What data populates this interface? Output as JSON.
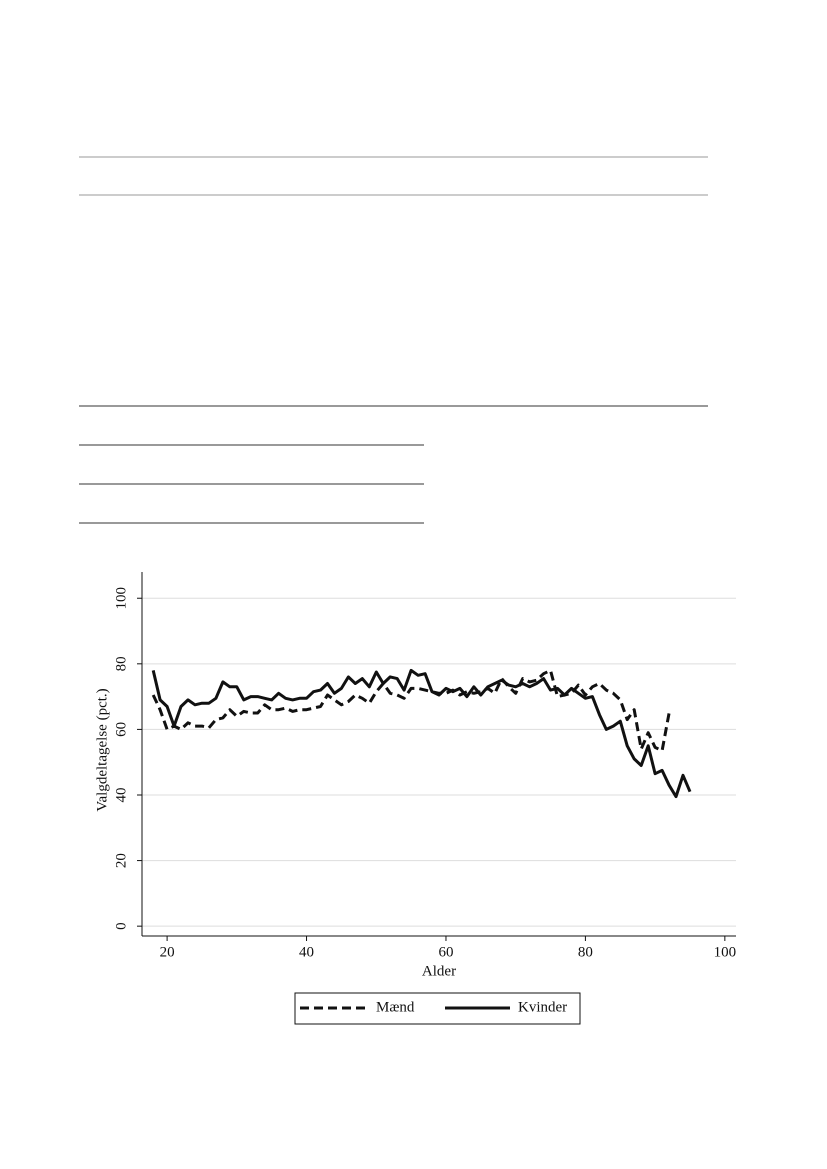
{
  "chart_data": {
    "type": "line",
    "x_label": "Alder",
    "y_label": "Valgdeltagelse (pct.)",
    "x": [
      18,
      19,
      20,
      21,
      22,
      23,
      24,
      25,
      26,
      27,
      28,
      29,
      30,
      31,
      32,
      33,
      34,
      35,
      36,
      37,
      38,
      39,
      40,
      41,
      42,
      43,
      44,
      45,
      46,
      47,
      48,
      49,
      50,
      51,
      52,
      53,
      54,
      55,
      56,
      57,
      58,
      59,
      60,
      61,
      62,
      63,
      64,
      65,
      66,
      67,
      68,
      69,
      70,
      71,
      72,
      73,
      74,
      75,
      76,
      77,
      78,
      79,
      80,
      81,
      82,
      83,
      84,
      85,
      86,
      87,
      88,
      89,
      90,
      91,
      92,
      93,
      94,
      95
    ],
    "series": [
      {
        "name": "Mænd",
        "color": "#111111",
        "dash": true,
        "values": [
          70.5,
          66,
          60,
          61,
          60,
          62,
          61,
          61,
          60.5,
          63,
          63.5,
          66,
          64,
          65.5,
          65,
          65,
          67.5,
          66,
          66,
          66.5,
          65.5,
          66,
          66,
          66.5,
          67,
          70.5,
          69,
          67.5,
          68.5,
          70.5,
          69.5,
          68,
          71.5,
          74,
          71,
          70.5,
          69.5,
          72.5,
          72.5,
          72,
          71.5,
          71,
          71,
          72,
          70.5,
          71.5,
          71,
          71.5,
          72.5,
          71,
          75.5,
          73,
          71,
          75.5,
          74.5,
          75,
          77,
          78,
          70,
          70.5,
          71,
          73.5,
          70.5,
          73,
          74,
          72,
          71,
          69,
          63,
          66,
          54,
          59,
          54.5,
          53.5,
          65,
          null,
          null,
          null
        ]
      },
      {
        "name": "Kvinder",
        "color": "#111111",
        "dash": false,
        "values": [
          78,
          69,
          67,
          61,
          67,
          69,
          67.5,
          68,
          68,
          69.5,
          74.5,
          73,
          73,
          69,
          70,
          70,
          69.5,
          69,
          71,
          69.5,
          69,
          69.5,
          69.5,
          71.5,
          72,
          74,
          71,
          72.5,
          76,
          74,
          75.5,
          73,
          77.5,
          74,
          76,
          75.5,
          72,
          78,
          76.5,
          77,
          71.5,
          70.5,
          72.5,
          71.5,
          72.5,
          70,
          73,
          70.5,
          73,
          74,
          75,
          73.5,
          73,
          74,
          73,
          74,
          75.5,
          72,
          72.5,
          70.5,
          72.5,
          71,
          69.5,
          70,
          64.5,
          60,
          61,
          62.5,
          55,
          51,
          49,
          55,
          46.5,
          47.5,
          43,
          39.5,
          46,
          41
        ]
      }
    ],
    "xlim": [
      16.4,
      101.6
    ],
    "xticks": [
      20,
      40,
      60,
      80,
      100
    ],
    "ylim": [
      -3,
      108
    ],
    "yticks": [
      0,
      20,
      40,
      60,
      80,
      100
    ],
    "grid": true,
    "legend": "bottom"
  }
}
